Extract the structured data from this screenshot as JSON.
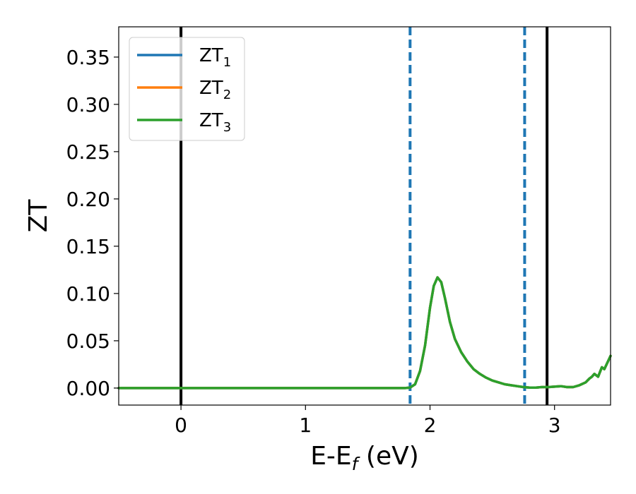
{
  "chart_data": {
    "type": "line",
    "xlabel": "E-E",
    "xlabel_sub": "f",
    "xlabel_unit": " (eV)",
    "ylabel": "ZT",
    "xlim": [
      -0.5,
      3.45
    ],
    "ylim": [
      -0.018,
      0.382
    ],
    "xticks": [
      0,
      1,
      2,
      3
    ],
    "xtick_labels": [
      "0",
      "1",
      "2",
      "3"
    ],
    "yticks": [
      0.0,
      0.05,
      0.1,
      0.15,
      0.2,
      0.25,
      0.3,
      0.35
    ],
    "ytick_labels": [
      "0.00",
      "0.05",
      "0.10",
      "0.15",
      "0.20",
      "0.25",
      "0.30",
      "0.35"
    ],
    "grid": false,
    "legend_position": "top-left",
    "vlines": [
      {
        "x": 0.0,
        "style": "solid",
        "color": "#000000"
      },
      {
        "x": 2.94,
        "style": "solid",
        "color": "#000000"
      },
      {
        "x": 1.84,
        "style": "dashed",
        "color": "#1f77b4"
      },
      {
        "x": 2.76,
        "style": "dashed",
        "color": "#1f77b4"
      }
    ],
    "series": [
      {
        "name": "ZT",
        "subscript": "1",
        "color": "#1f77b4",
        "x": [
          -0.5,
          1.8,
          1.84,
          1.88,
          1.92,
          1.96,
          2.0,
          2.03,
          2.06,
          2.09,
          2.12,
          2.16,
          2.2,
          2.25,
          2.3,
          2.35,
          2.4,
          2.45,
          2.5,
          2.55,
          2.6,
          2.65,
          2.7,
          2.75,
          2.8,
          2.85,
          2.9,
          2.95,
          3.0,
          3.05,
          3.1,
          3.15,
          3.2,
          3.25,
          3.28,
          3.3,
          3.32,
          3.35,
          3.38,
          3.4,
          3.45
        ],
        "y": [
          0.0,
          0.0,
          0.0005,
          0.004,
          0.018,
          0.045,
          0.085,
          0.108,
          0.117,
          0.112,
          0.095,
          0.07,
          0.052,
          0.038,
          0.028,
          0.02,
          0.015,
          0.011,
          0.008,
          0.006,
          0.004,
          0.003,
          0.002,
          0.001,
          0.0005,
          0.0005,
          0.001,
          0.001,
          0.0015,
          0.002,
          0.001,
          0.001,
          0.003,
          0.006,
          0.01,
          0.012,
          0.015,
          0.012,
          0.022,
          0.02,
          0.034
        ]
      },
      {
        "name": "ZT",
        "subscript": "2",
        "color": "#ff7f0e",
        "x": [
          -0.5,
          1.8,
          1.84,
          1.88,
          1.92,
          1.96,
          2.0,
          2.03,
          2.06,
          2.09,
          2.12,
          2.16,
          2.2,
          2.25,
          2.3,
          2.35,
          2.4,
          2.45,
          2.5,
          2.55,
          2.6,
          2.65,
          2.7,
          2.75,
          2.8,
          2.85,
          2.9,
          2.95,
          3.0,
          3.05,
          3.1,
          3.15,
          3.2,
          3.25,
          3.28,
          3.3,
          3.32,
          3.35,
          3.38,
          3.4,
          3.45
        ],
        "y": [
          0.0,
          0.0,
          0.0005,
          0.004,
          0.018,
          0.045,
          0.085,
          0.108,
          0.117,
          0.112,
          0.095,
          0.07,
          0.052,
          0.038,
          0.028,
          0.02,
          0.015,
          0.011,
          0.008,
          0.006,
          0.004,
          0.003,
          0.002,
          0.001,
          0.0005,
          0.0005,
          0.001,
          0.001,
          0.0015,
          0.002,
          0.001,
          0.001,
          0.003,
          0.006,
          0.01,
          0.012,
          0.015,
          0.012,
          0.022,
          0.02,
          0.034
        ]
      },
      {
        "name": "ZT",
        "subscript": "3",
        "color": "#2ca02c",
        "x": [
          -0.5,
          1.8,
          1.84,
          1.88,
          1.92,
          1.96,
          2.0,
          2.03,
          2.06,
          2.09,
          2.12,
          2.16,
          2.2,
          2.25,
          2.3,
          2.35,
          2.4,
          2.45,
          2.5,
          2.55,
          2.6,
          2.65,
          2.7,
          2.75,
          2.8,
          2.85,
          2.9,
          2.95,
          3.0,
          3.05,
          3.1,
          3.15,
          3.2,
          3.25,
          3.28,
          3.3,
          3.32,
          3.35,
          3.38,
          3.4,
          3.45
        ],
        "y": [
          0.0,
          0.0,
          0.0005,
          0.004,
          0.018,
          0.045,
          0.085,
          0.108,
          0.117,
          0.112,
          0.095,
          0.07,
          0.052,
          0.038,
          0.028,
          0.02,
          0.015,
          0.011,
          0.008,
          0.006,
          0.004,
          0.003,
          0.002,
          0.001,
          0.0005,
          0.0005,
          0.001,
          0.001,
          0.0015,
          0.002,
          0.001,
          0.001,
          0.003,
          0.006,
          0.01,
          0.012,
          0.015,
          0.012,
          0.022,
          0.02,
          0.034
        ]
      }
    ]
  }
}
